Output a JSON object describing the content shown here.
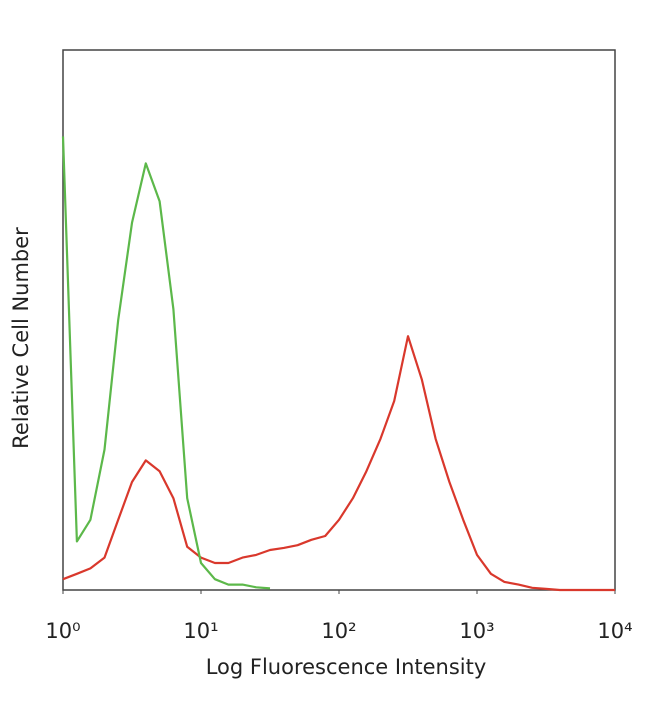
{
  "chart_data": {
    "type": "line",
    "xlabel": "Log Fluorescence Intensity",
    "ylabel": "Relative Cell Number",
    "log_x": true,
    "xlim": [
      1,
      10000
    ],
    "xticks": [
      {
        "value": 1,
        "label": "10⁰"
      },
      {
        "value": 10,
        "label": "10¹"
      },
      {
        "value": 100,
        "label": "10²"
      },
      {
        "value": 1000,
        "label": "10³"
      },
      {
        "value": 10000,
        "label": "10⁴"
      }
    ],
    "ylim": [
      0,
      100
    ],
    "x": [
      1,
      1.26,
      1.58,
      2,
      2.51,
      3.16,
      3.98,
      5.01,
      6.31,
      7.94,
      10,
      12.6,
      15.8,
      20,
      25.1,
      31.6,
      39.8,
      50.1,
      63.1,
      79.4,
      100,
      126,
      158,
      200,
      251,
      316,
      398,
      501,
      631,
      794,
      1000,
      1260,
      1580,
      2000,
      2510,
      3160,
      3980,
      5010,
      6310,
      7940,
      10000
    ],
    "series": [
      {
        "color": "#d9382c",
        "values": [
          2,
          3,
          4,
          6,
          13,
          20,
          24,
          22,
          17,
          8,
          6,
          5,
          5,
          6,
          6.5,
          7.4,
          7.8,
          8.3,
          9.3,
          10,
          13,
          17,
          22,
          28,
          35,
          47,
          39,
          28,
          20,
          13,
          6.5,
          3,
          1.5,
          1,
          0.4,
          0.2,
          0,
          0,
          0,
          0,
          0
        ]
      },
      {
        "color": "#5cb84a",
        "values": [
          84,
          9,
          13,
          26,
          50,
          68,
          79,
          72,
          52,
          17,
          5,
          2,
          1,
          1,
          0.5,
          0.3,
          null,
          null,
          null,
          null,
          null,
          null,
          null,
          null,
          null,
          null,
          null,
          null,
          null,
          null,
          null,
          null,
          null,
          null,
          null,
          null,
          null,
          null,
          null,
          null,
          null
        ]
      }
    ]
  }
}
